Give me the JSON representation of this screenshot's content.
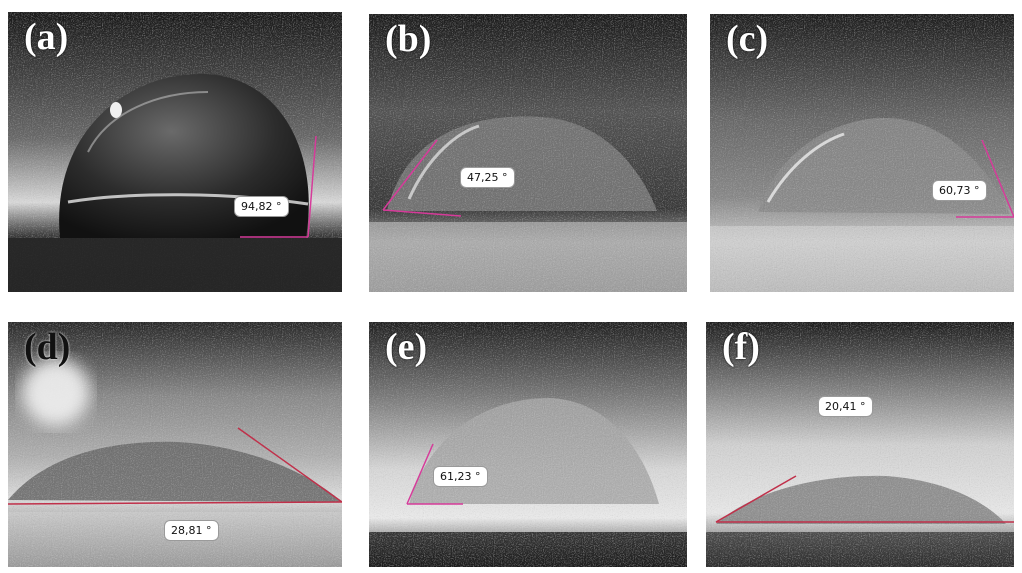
{
  "colors": {
    "line_magenta": "#d63b9a",
    "line_red": "#c0304a",
    "badge_border": "#9a9a9a"
  },
  "panels": [
    {
      "label": "(a)",
      "angle": "94,82 °"
    },
    {
      "label": "(b)",
      "angle": "47,25 °"
    },
    {
      "label": "(c)",
      "angle": "60,73 °"
    },
    {
      "label": "(d)",
      "angle": "28,81 °"
    },
    {
      "label": "(e)",
      "angle": "61,23 °"
    },
    {
      "label": "(f)",
      "angle": "20,41 °"
    }
  ]
}
